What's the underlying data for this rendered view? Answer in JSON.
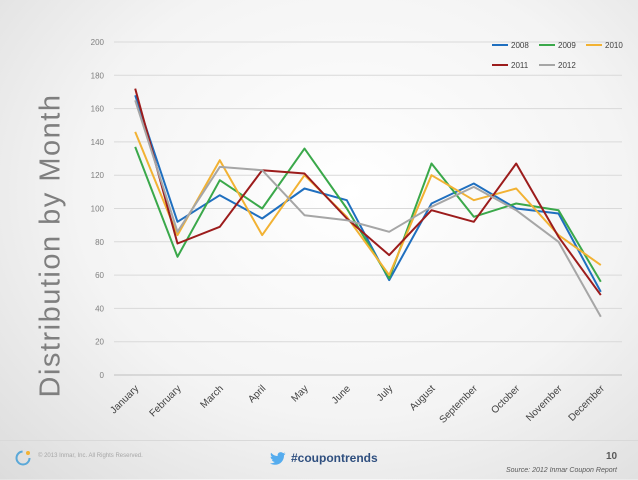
{
  "slide": {
    "side_title": "Distribution by Month",
    "copyright": "© 2013 Inmar, Inc. All Rights Reserved.",
    "hashtag": "#coupontrends",
    "page_number": "10",
    "source": "Source: 2012 Inmar Coupon Report"
  },
  "chart_data": {
    "type": "line",
    "title": "",
    "xlabel": "",
    "ylabel": "",
    "ylim": [
      0,
      200
    ],
    "yticks": [
      0,
      20,
      40,
      60,
      80,
      100,
      120,
      140,
      160,
      180,
      200
    ],
    "grid": true,
    "legend_position": "top-right",
    "categories": [
      "January",
      "February",
      "March",
      "April",
      "May",
      "June",
      "July",
      "August",
      "September",
      "October",
      "November",
      "December"
    ],
    "series": [
      {
        "name": "2008",
        "color": "#1f6fbf",
        "values": [
          168,
          92,
          108,
          94,
          112,
          105,
          57,
          103,
          115,
          100,
          97,
          50
        ]
      },
      {
        "name": "2009",
        "color": "#3aa84a",
        "values": [
          137,
          71,
          117,
          100,
          136,
          100,
          58,
          127,
          95,
          103,
          99,
          56
        ]
      },
      {
        "name": "2010",
        "color": "#f2b233",
        "values": [
          146,
          84,
          129,
          84,
          120,
          95,
          60,
          120,
          105,
          112,
          84,
          66
        ]
      },
      {
        "name": "2011",
        "color": "#9c1c1c",
        "values": [
          172,
          79,
          89,
          123,
          121,
          94,
          72,
          99,
          92,
          127,
          83,
          48
        ]
      },
      {
        "name": "2012",
        "color": "#a6a6a6",
        "values": [
          165,
          86,
          125,
          123,
          96,
          93,
          86,
          101,
          113,
          99,
          80,
          35
        ]
      }
    ]
  }
}
